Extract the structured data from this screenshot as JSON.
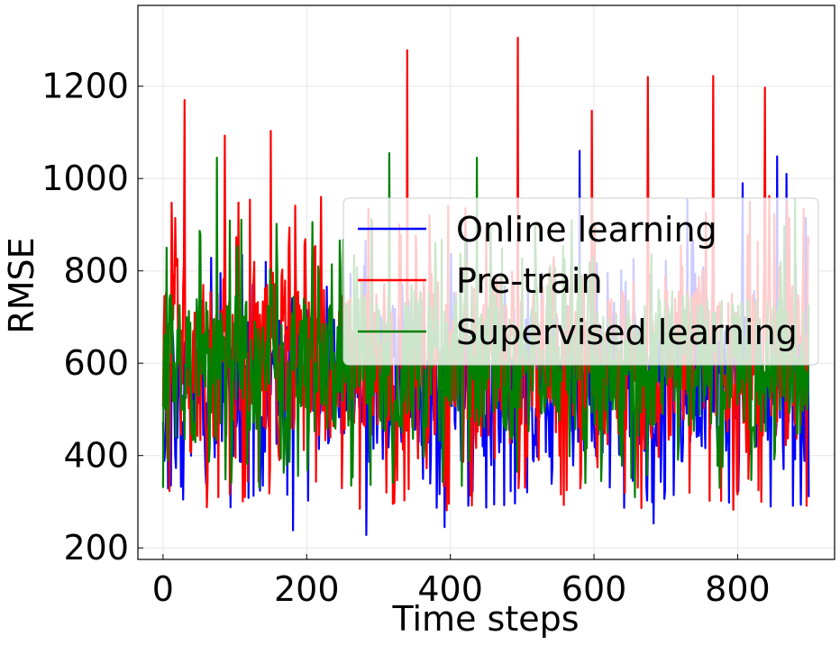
{
  "chart_data": {
    "type": "line",
    "title": "",
    "xlabel": "Time steps",
    "ylabel": "RMSE",
    "xlim": [
      -35,
      935
    ],
    "ylim": [
      175,
      1375
    ],
    "xticks": [
      0,
      200,
      400,
      600,
      800
    ],
    "yticks": [
      200,
      400,
      600,
      800,
      1000,
      1200
    ],
    "grid": true,
    "legend_position": "center-right",
    "n_points": 900,
    "series": [
      {
        "name": "Online learning",
        "color": "#0000ff",
        "summary": {
          "typical_range": [
            350,
            750
          ],
          "mean_approx": 540
        },
        "notable_points": [
          [
            80,
            795
          ],
          [
            181,
            238
          ],
          [
            283,
            228
          ],
          [
            392,
            245
          ],
          [
            580,
            1060
          ],
          [
            683,
            253
          ],
          [
            730,
            955
          ],
          [
            807,
            990
          ],
          [
            855,
            1048
          ],
          [
            868,
            1010
          ],
          [
            895,
            915
          ],
          [
            899,
            310
          ]
        ]
      },
      {
        "name": "Pre-train",
        "color": "#ff0000",
        "summary": {
          "typical_range": [
            350,
            850
          ],
          "mean_approx": 560
        },
        "notable_points": [
          [
            30,
            1170
          ],
          [
            86,
            1093
          ],
          [
            150,
            1103
          ],
          [
            340,
            1278
          ],
          [
            494,
            1305
          ],
          [
            597,
            1147
          ],
          [
            675,
            1220
          ],
          [
            766,
            1222
          ],
          [
            838,
            1197
          ],
          [
            869,
            950
          ]
        ]
      },
      {
        "name": "Supervised learning",
        "color": "#008000",
        "summary": {
          "typical_range": [
            400,
            800
          ],
          "mean_approx": 570
        },
        "notable_points": [
          [
            75,
            1045
          ],
          [
            315,
            1055
          ],
          [
            437,
            1045
          ],
          [
            0,
            330
          ],
          [
            657,
            310
          ],
          [
            775,
            330
          ],
          [
            880,
            955
          ]
        ]
      }
    ]
  }
}
